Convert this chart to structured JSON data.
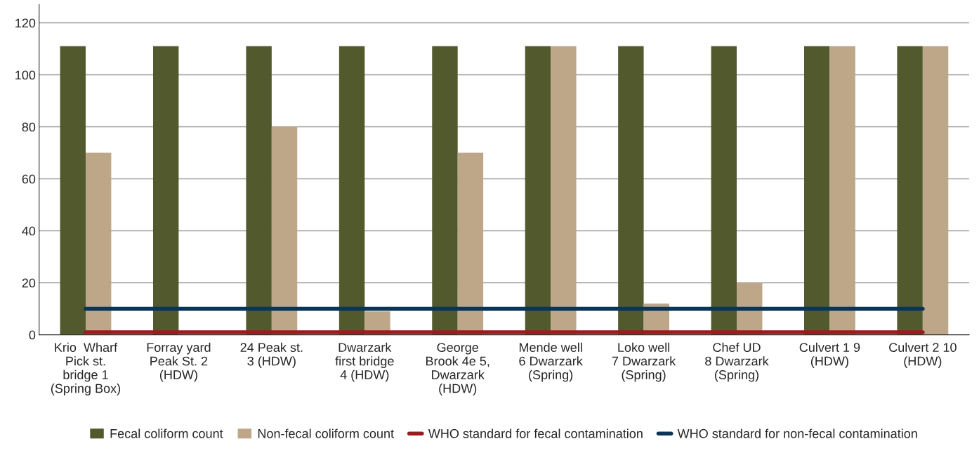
{
  "chart_data": {
    "type": "bar",
    "categories": [
      "Krio  Wharf\nPick st.\nbridge 1\n(Spring Box)",
      "Forray yard\nPeak St. 2\n(HDW)",
      "24 Peak st.\n3 (HDW)",
      "Dwarzark\nfirst bridge\n4 (HDW)",
      "George\nBrook 4e 5,\nDwarzark\n(HDW)",
      "Mende well\n6 Dwarzark\n(Spring)",
      "Loko well\n7 Dwarzark\n(Spring)",
      "Chef UD\n8 Dwarzark\n(Spring)",
      "Culvert 1 9\n(HDW)",
      "Culvert 2 10\n(HDW)"
    ],
    "series": [
      {
        "name": "Fecal coliform count",
        "color": "#525a2d",
        "values": [
          111,
          111,
          111,
          111,
          111,
          111,
          111,
          111,
          111,
          111
        ]
      },
      {
        "name": "Non-fecal coliform count",
        "color": "#bea789",
        "values": [
          70,
          null,
          80,
          9,
          70,
          111,
          12,
          20,
          111,
          111
        ]
      },
      {
        "name": "WHO standard for fecal contamination",
        "type": "line",
        "color": "#9b1c1f",
        "values": [
          1,
          1,
          1,
          1,
          1,
          1,
          1,
          1,
          1,
          1
        ]
      },
      {
        "name": "WHO standard for non-fecal contamination",
        "type": "line",
        "color": "#0b3556",
        "values": [
          10,
          10,
          10,
          10,
          10,
          10,
          10,
          10,
          10,
          10
        ]
      }
    ],
    "ylim": [
      0,
      127
    ],
    "yticks": [
      0,
      20,
      40,
      60,
      80,
      100,
      120
    ],
    "grid": "y",
    "legend": "bottom"
  }
}
